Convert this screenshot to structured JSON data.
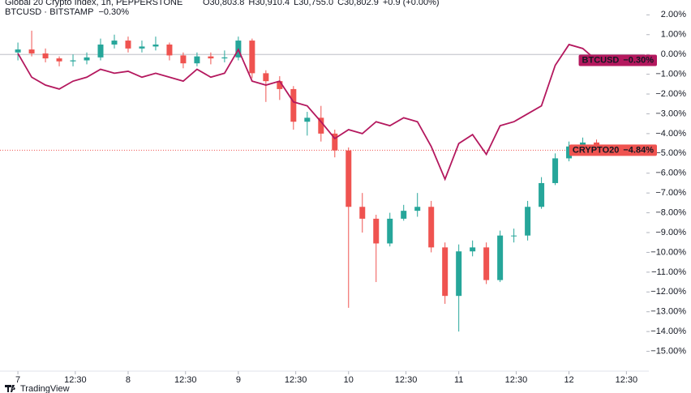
{
  "chart_data": {
    "type": "candlestick",
    "title": "Global 20 Crypto Index, 1h, PEPPERSTONE",
    "ohlc_text": [
      "O30,803.8",
      "H30,910.4",
      "L30,755.0",
      "C30,802.9",
      "+0.9 (+0.00%)"
    ],
    "name": "CRYPTO20",
    "last_label": {
      "value": -4.84,
      "label": "−4.84%"
    },
    "up_color": "#26a69a",
    "down_color": "#ef5350",
    "x": [
      0,
      3,
      6,
      9,
      12,
      15,
      18,
      21,
      24,
      27,
      30,
      33,
      36,
      39,
      42,
      45,
      48,
      51,
      54,
      57,
      60,
      63,
      66,
      69,
      72,
      75,
      78,
      81,
      84,
      87,
      90,
      93,
      96,
      99,
      102,
      105,
      108,
      111,
      114,
      117,
      120,
      123,
      126
    ],
    "open": [
      0.1,
      0.25,
      0.05,
      -0.2,
      -0.35,
      -0.3,
      -0.15,
      0.5,
      0.7,
      0.3,
      0.4,
      0.5,
      -0.05,
      -0.45,
      -0.1,
      -0.2,
      -0.15,
      0.7,
      -0.95,
      -1.35,
      -1.75,
      -3.4,
      -3.2,
      -4.0,
      -4.85,
      -7.7,
      -8.3,
      -9.55,
      -8.3,
      -7.9,
      -7.7,
      -9.75,
      -12.2,
      -9.95,
      -9.75,
      -11.4,
      -9.15,
      -9.15,
      -7.7,
      -6.5,
      -5.25,
      -4.65,
      -4.45
    ],
    "high": [
      0.6,
      1.2,
      0.3,
      -0.1,
      0,
      0.1,
      0.8,
      1.0,
      0.9,
      0.7,
      0.9,
      0.6,
      0.1,
      0.1,
      0.1,
      0.2,
      0.9,
      0.8,
      -0.8,
      -1.1,
      -1.6,
      -2.9,
      -2.6,
      -3.8,
      -4.7,
      -7.0,
      -8.1,
      -8.0,
      -7.6,
      -7.0,
      -7.4,
      -9.5,
      -9.6,
      -9.4,
      -9.5,
      -8.9,
      -8.8,
      -7.4,
      -6.2,
      -5.0,
      -4.4,
      -4.2,
      -4.3
    ],
    "low": [
      -0.3,
      -0.1,
      -0.4,
      -0.6,
      -0.6,
      -0.5,
      -0.3,
      0.3,
      0.1,
      0.1,
      0.2,
      -0.3,
      -0.7,
      -0.6,
      -0.5,
      -0.4,
      -0.3,
      -1.2,
      -2.4,
      -2.3,
      -3.8,
      -4.1,
      -4.4,
      -5.2,
      -12.8,
      -9.0,
      -11.5,
      -9.7,
      -8.4,
      -8.2,
      -10.0,
      -12.6,
      -14.0,
      -10.2,
      -11.6,
      -11.5,
      -9.5,
      -9.4,
      -7.8,
      -6.6,
      -5.4,
      -4.8,
      -5.0
    ],
    "close": [
      0.25,
      0.05,
      -0.2,
      -0.35,
      -0.3,
      -0.15,
      0.5,
      0.7,
      0.3,
      0.4,
      0.5,
      -0.05,
      -0.45,
      -0.1,
      -0.2,
      -0.15,
      0.7,
      -0.95,
      -1.35,
      -1.75,
      -3.4,
      -3.2,
      -4.0,
      -4.85,
      -7.7,
      -8.3,
      -9.55,
      -8.3,
      -7.9,
      -7.7,
      -9.75,
      -12.2,
      -9.95,
      -9.75,
      -11.4,
      -9.15,
      -9.15,
      -7.7,
      -6.5,
      -5.25,
      -4.65,
      -4.45,
      -4.84
    ],
    "series": [
      {
        "name": "BTCUSD",
        "source": "BITSTAMP",
        "color": "#b4185e",
        "type": "line",
        "last_label": {
          "value": -0.3,
          "label": "−0.30%"
        },
        "values": [
          0.05,
          -1.15,
          -1.55,
          -1.75,
          -1.35,
          -1.15,
          -0.75,
          -0.95,
          -0.85,
          -1.15,
          -0.95,
          -1.15,
          -1.35,
          -0.75,
          -1.15,
          -0.95,
          0.25,
          -1.35,
          -1.55,
          -1.35,
          -2.4,
          -2.6,
          -3.4,
          -4.25,
          -3.8,
          -4.0,
          -3.4,
          -3.6,
          -3.2,
          -3.4,
          -4.65,
          -6.3,
          -4.5,
          -4.05,
          -5.05,
          -3.6,
          -3.4,
          -3.0,
          -2.6,
          -0.55,
          0.5,
          0.3,
          -0.3
        ]
      }
    ],
    "xlim": [
      -3.9,
      136.5
    ],
    "xticks": [
      {
        "value": 0,
        "label": "7"
      },
      {
        "value": 12.5,
        "label": "12:30"
      },
      {
        "value": 24,
        "label": "8"
      },
      {
        "value": 36.5,
        "label": "12:30"
      },
      {
        "value": 48,
        "label": "9"
      },
      {
        "value": 60.5,
        "label": "12:30"
      },
      {
        "value": 72,
        "label": "10"
      },
      {
        "value": 84.5,
        "label": "12:30"
      },
      {
        "value": 96,
        "label": "11"
      },
      {
        "value": 108.5,
        "label": "12:30"
      },
      {
        "value": 120,
        "label": "12"
      },
      {
        "value": 132.5,
        "label": "12:30"
      }
    ],
    "ylim": [
      -16,
      2.75
    ],
    "yticks": [
      {
        "value": 2,
        "label": "2.00%"
      },
      {
        "value": 1,
        "label": "1.00%"
      },
      {
        "value": 0,
        "label": "0.00%"
      },
      {
        "value": -1,
        "label": "−1.00%"
      },
      {
        "value": -2,
        "label": "−2.00%"
      },
      {
        "value": -3,
        "label": "−3.00%"
      },
      {
        "value": -4,
        "label": "−4.00%"
      },
      {
        "value": -5,
        "label": "−5.00%"
      },
      {
        "value": -6,
        "label": "−6.00%"
      },
      {
        "value": -7,
        "label": "−7.00%"
      },
      {
        "value": -8,
        "label": "−8.00%"
      },
      {
        "value": -9,
        "label": "−9.00%"
      },
      {
        "value": -10,
        "label": "−10.00%"
      },
      {
        "value": -11,
        "label": "−11.00%"
      },
      {
        "value": -12,
        "label": "−12.00%"
      },
      {
        "value": -13,
        "label": "−13.00%"
      },
      {
        "value": -14,
        "label": "−14.00%"
      },
      {
        "value": -15,
        "label": "−15.00%"
      }
    ]
  },
  "footer": {
    "brand": "TradingView"
  }
}
